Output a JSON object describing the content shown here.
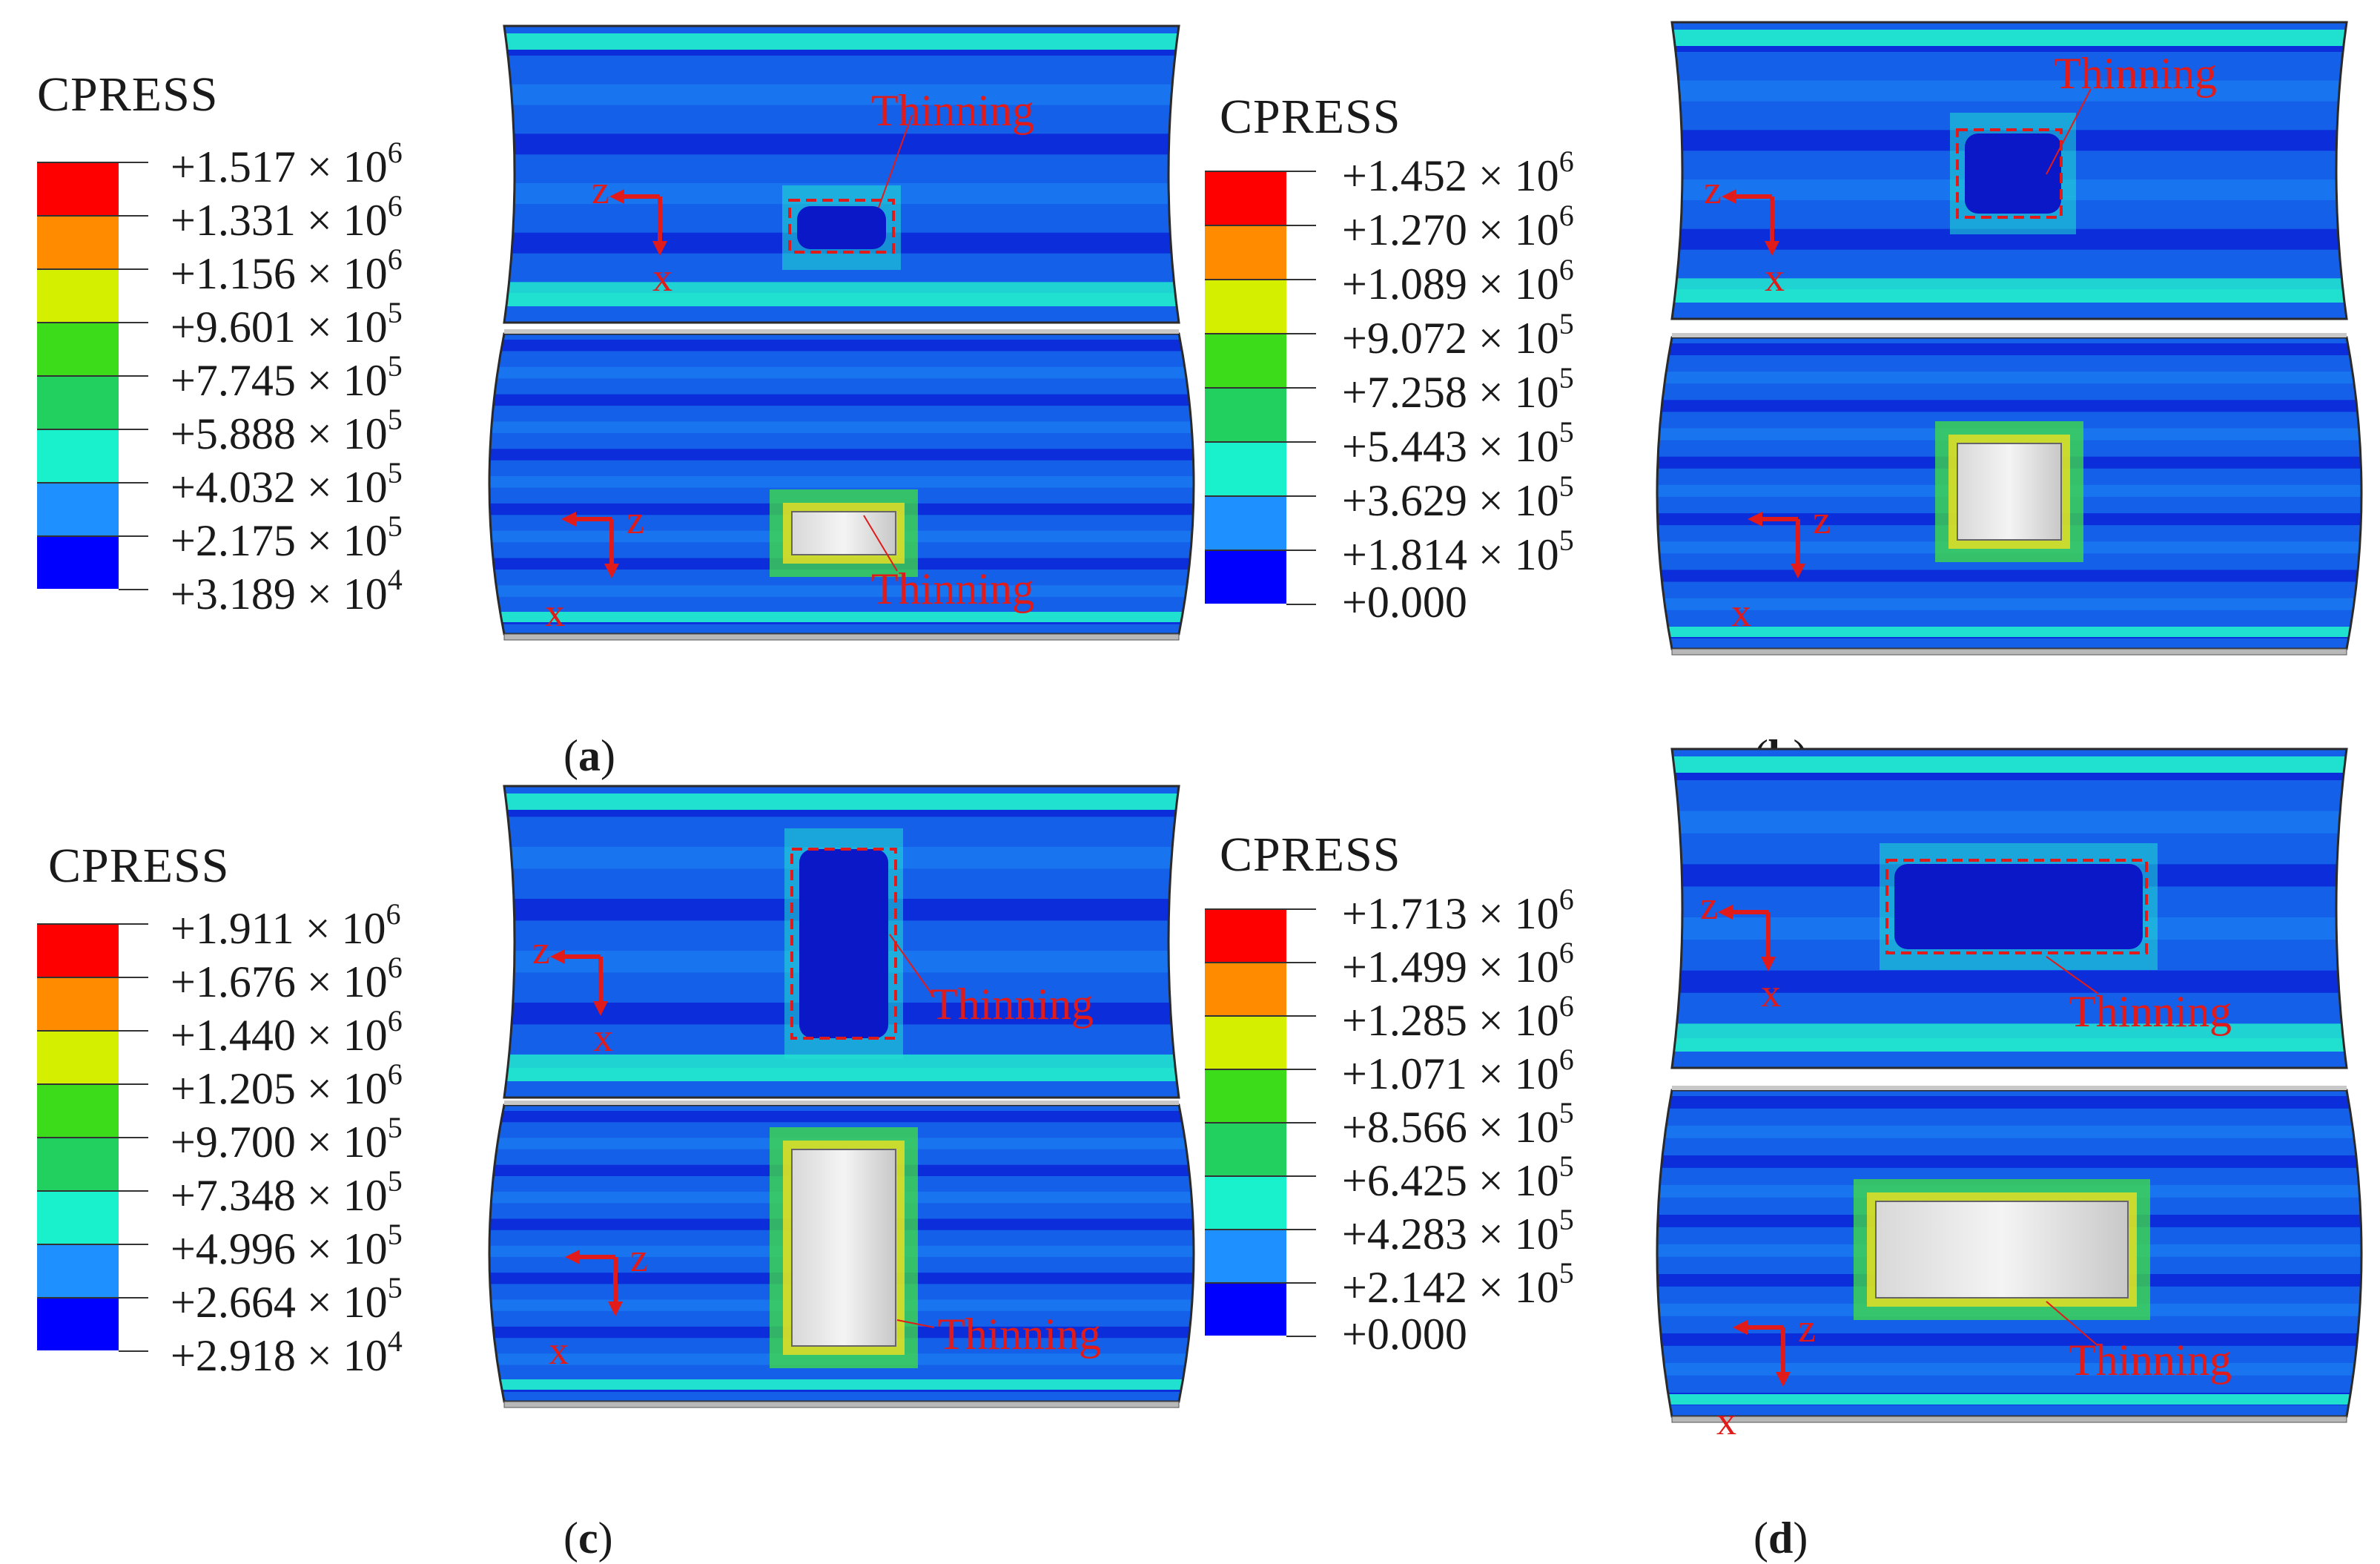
{
  "colors": {
    "legend_scale": [
      "#ff0000",
      "#ff8c00",
      "#d4f000",
      "#3ddc1a",
      "#22d060",
      "#19f0cc",
      "#1e90ff",
      "#0000ff"
    ],
    "mesh_base": "#1560e8",
    "mesh_band_light": "#20e0d0",
    "mesh_band_dark": "#0a28d8",
    "mesh_green": "#40e040",
    "annotation": "#e11a1a"
  },
  "panels": [
    {
      "label_open": "(",
      "label_letter": "a",
      "label_close": ")",
      "legend_title": "CPRESS",
      "legend_values": [
        {
          "mantissa": "+1.517 × 10",
          "exp": "6"
        },
        {
          "mantissa": "+1.331 × 10",
          "exp": "6"
        },
        {
          "mantissa": "+1.156 × 10",
          "exp": "6"
        },
        {
          "mantissa": "+9.601 × 10",
          "exp": "5"
        },
        {
          "mantissa": "+7.745 × 10",
          "exp": "5"
        },
        {
          "mantissa": "+5.888 × 10",
          "exp": "5"
        },
        {
          "mantissa": "+4.032 × 10",
          "exp": "5"
        },
        {
          "mantissa": "+2.175 × 10",
          "exp": "5"
        },
        {
          "mantissa": "+3.189 × 10",
          "exp": "4"
        }
      ],
      "annotation_top": "Thinning",
      "annotation_bottom": "Thinning",
      "axis_z": "z",
      "axis_x": "x"
    },
    {
      "label_open": "(",
      "label_letter": "b",
      "label_close": ")",
      "legend_title": "CPRESS",
      "legend_values": [
        {
          "mantissa": "+1.452 × 10",
          "exp": "6"
        },
        {
          "mantissa": "+1.270 × 10",
          "exp": "6"
        },
        {
          "mantissa": "+1.089 × 10",
          "exp": "6"
        },
        {
          "mantissa": "+9.072 × 10",
          "exp": "5"
        },
        {
          "mantissa": "+7.258 × 10",
          "exp": "5"
        },
        {
          "mantissa": "+5.443 × 10",
          "exp": "5"
        },
        {
          "mantissa": "+3.629 × 10",
          "exp": "5"
        },
        {
          "mantissa": "+1.814 × 10",
          "exp": "5"
        },
        {
          "mantissa": "+0.000",
          "exp": ""
        }
      ],
      "annotation_top": "Thinning",
      "annotation_bottom": "",
      "axis_z": "z",
      "axis_x": "x"
    },
    {
      "label_open": "(",
      "label_letter": "c",
      "label_close": ")",
      "legend_title": "CPRESS",
      "legend_values": [
        {
          "mantissa": "+1.911 × 10",
          "exp": "6"
        },
        {
          "mantissa": "+1.676 × 10",
          "exp": "6"
        },
        {
          "mantissa": "+1.440 × 10",
          "exp": "6"
        },
        {
          "mantissa": "+1.205 × 10",
          "exp": "6"
        },
        {
          "mantissa": "+9.700 × 10",
          "exp": "5"
        },
        {
          "mantissa": "+7.348 × 10",
          "exp": "5"
        },
        {
          "mantissa": "+4.996 × 10",
          "exp": "5"
        },
        {
          "mantissa": "+2.664 × 10",
          "exp": "5"
        },
        {
          "mantissa": "+2.918 × 10",
          "exp": "4"
        }
      ],
      "annotation_top": "Thinning",
      "annotation_bottom": "Thinning",
      "axis_z": "z",
      "axis_x": "x"
    },
    {
      "label_open": "(",
      "label_letter": "d",
      "label_close": ")",
      "legend_title": "CPRESS",
      "legend_values": [
        {
          "mantissa": "+1.713 × 10",
          "exp": "6"
        },
        {
          "mantissa": "+1.499 × 10",
          "exp": "6"
        },
        {
          "mantissa": "+1.285 × 10",
          "exp": "6"
        },
        {
          "mantissa": "+1.071 × 10",
          "exp": "6"
        },
        {
          "mantissa": "+8.566 × 10",
          "exp": "5"
        },
        {
          "mantissa": "+6.425 × 10",
          "exp": "5"
        },
        {
          "mantissa": "+4.283 × 10",
          "exp": "5"
        },
        {
          "mantissa": "+2.142 × 10",
          "exp": "5"
        },
        {
          "mantissa": "+0.000",
          "exp": ""
        }
      ],
      "annotation_top": "Thinning",
      "annotation_bottom": "Thinning",
      "axis_z": "z",
      "axis_x": "x"
    }
  ]
}
